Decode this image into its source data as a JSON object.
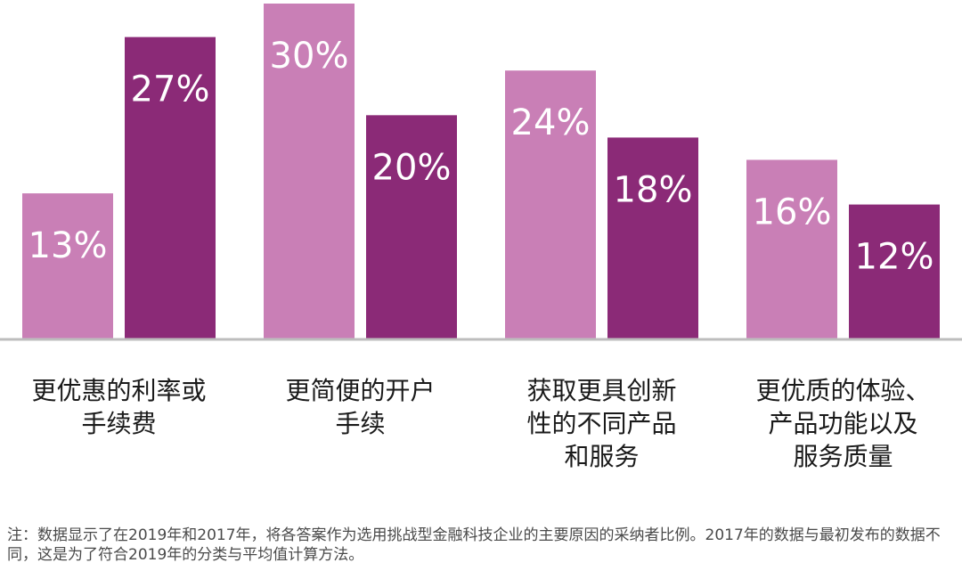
{
  "chart_data": {
    "type": "bar",
    "categories": [
      [
        "更优惠的利率或",
        "手续费"
      ],
      [
        "更简便的开户",
        "手续"
      ],
      [
        "获取更具创新",
        "性的不同产品",
        "和服务"
      ],
      [
        "更优质的体验、",
        "产品功能以及",
        "服务质量"
      ]
    ],
    "series": [
      {
        "values": [
          13,
          30,
          24,
          16
        ],
        "color": "#c97fb6"
      },
      {
        "values": [
          27,
          20,
          18,
          12
        ],
        "color": "#8b2a77"
      }
    ],
    "value_suffix": "%",
    "ylim": [
      0,
      30
    ],
    "baseline_color": "#bdbdbd",
    "grid": false
  },
  "note": {
    "text": "注：数据显示了在2019年和2017年，将各答案作为选用挑战型金融科技企业的主要原因的采纳者比例。2017年的数据与最初发布的数据不同，这是为了符合2019年的分类与平均值计算方法。"
  }
}
